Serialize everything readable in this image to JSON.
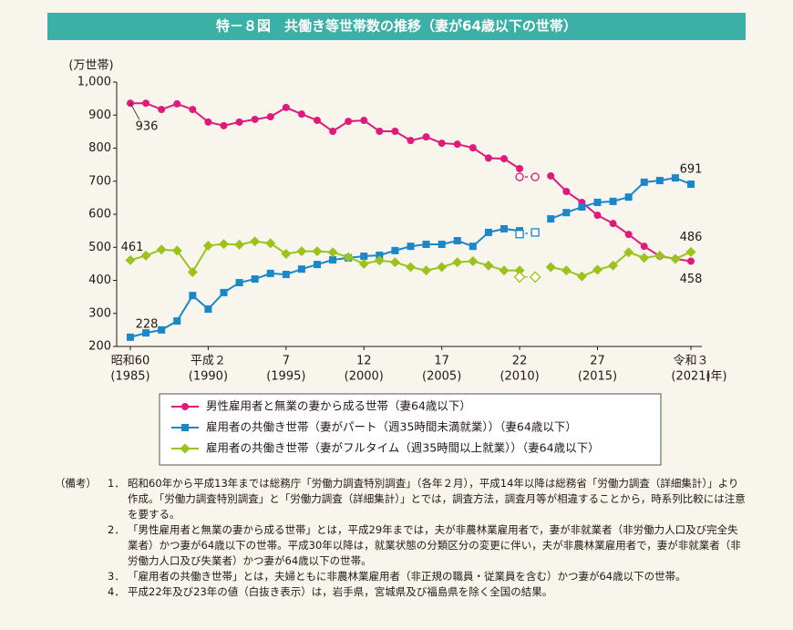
{
  "chart_data": {
    "type": "line",
    "title": "特－８図　共働き等世帯数の推移（妻が64歳以下の世帯）",
    "y_label": "(万世帯)",
    "x_unit": "(年)",
    "x": [
      1985,
      1986,
      1987,
      1988,
      1989,
      1990,
      1991,
      1992,
      1993,
      1994,
      1995,
      1996,
      1997,
      1998,
      1999,
      2000,
      2001,
      2002,
      2003,
      2004,
      2005,
      2006,
      2007,
      2008,
      2009,
      2010,
      2011,
      2012,
      2013,
      2014,
      2015,
      2016,
      2017,
      2018,
      2019,
      2020,
      2021
    ],
    "xlim": [
      1985,
      2021
    ],
    "xticks": [
      {
        "value": 1985,
        "label": "昭和60",
        "sublabel": "(1985)"
      },
      {
        "value": 1990,
        "label": "平成２",
        "sublabel": "(1990)"
      },
      {
        "value": 1995,
        "label": "7",
        "sublabel": "(1995)"
      },
      {
        "value": 2000,
        "label": "12",
        "sublabel": "(2000)"
      },
      {
        "value": 2005,
        "label": "17",
        "sublabel": "(2005)"
      },
      {
        "value": 2010,
        "label": "22",
        "sublabel": "(2010)"
      },
      {
        "value": 2015,
        "label": "27",
        "sublabel": "(2015)"
      },
      {
        "value": 2021,
        "label": "令和３",
        "sublabel": "(2021)"
      }
    ],
    "ylim": [
      200,
      1000
    ],
    "yticks": [
      200,
      300,
      400,
      500,
      600,
      700,
      800,
      900,
      {
        "value": 1000,
        "label": "1,000"
      }
    ],
    "labeled_points": [
      0,
      36
    ],
    "series": [
      {
        "name": "男性雇用者と無業の妻から成る世帯（妻64歳以下）",
        "color": "#e2197c",
        "marker": "circle",
        "values": [
          936,
          936,
          917,
          934,
          917,
          879,
          868,
          879,
          887,
          895,
          923,
          903,
          884,
          851,
          881,
          884,
          851,
          851,
          823,
          834,
          815,
          812,
          801,
          770,
          768,
          738,
          null,
          716,
          669,
          636,
          597,
          572,
          539,
          503,
          473,
          465,
          458
        ],
        "alt_values": [
          null,
          null,
          null,
          null,
          null,
          null,
          null,
          null,
          null,
          null,
          null,
          null,
          null,
          null,
          null,
          null,
          null,
          null,
          null,
          null,
          null,
          null,
          null,
          null,
          null,
          713,
          713,
          null,
          null,
          null,
          null,
          null,
          null,
          null,
          null,
          null,
          null
        ]
      },
      {
        "name": "雇用者の共働き世帯（妻がパート（週35時間未満就業））（妻64歳以下）",
        "color": "#1a87c9",
        "marker": "square",
        "values": [
          228,
          241,
          250,
          277,
          354,
          313,
          363,
          393,
          404,
          421,
          418,
          434,
          448,
          462,
          468,
          473,
          476,
          490,
          503,
          509,
          509,
          520,
          503,
          545,
          556,
          550,
          null,
          586,
          605,
          622,
          636,
          639,
          652,
          697,
          702,
          710,
          691
        ],
        "alt_values": [
          null,
          null,
          null,
          null,
          null,
          null,
          null,
          null,
          null,
          null,
          null,
          null,
          null,
          null,
          null,
          null,
          null,
          null,
          null,
          null,
          null,
          null,
          null,
          null,
          null,
          540,
          545,
          null,
          null,
          null,
          null,
          null,
          null,
          null,
          null,
          null,
          null
        ]
      },
      {
        "name": "雇用者の共働き世帯（妻がフルタイム（週35時間以上就業））（妻64歳以下）",
        "color": "#9cc31b",
        "marker": "diamond",
        "values": [
          461,
          475,
          493,
          490,
          425,
          505,
          510,
          508,
          518,
          512,
          480,
          488,
          488,
          485,
          470,
          450,
          460,
          455,
          440,
          430,
          440,
          455,
          458,
          445,
          430,
          430,
          null,
          440,
          430,
          412,
          432,
          445,
          485,
          468,
          475,
          465,
          486
        ],
        "alt_values": [
          null,
          null,
          null,
          null,
          null,
          null,
          null,
          null,
          null,
          null,
          null,
          null,
          null,
          null,
          null,
          null,
          null,
          null,
          null,
          null,
          null,
          null,
          null,
          null,
          null,
          410,
          410,
          null,
          null,
          null,
          null,
          null,
          null,
          null,
          null,
          null,
          null
        ]
      }
    ]
  },
  "notes": {
    "heading": "（備考）",
    "items": [
      {
        "num": "1．",
        "text": "昭和60年から平成13年までは総務庁「労働力調査特別調査」（各年２月），平成14年以降は総務省「労働力調査（詳細集計）」より作成。「労働力調査特別調査」と「労働力調査（詳細集計）」とでは，調査方法，調査月等が相違することから，時系列比較には注意を要する。"
      },
      {
        "num": "2．",
        "text": "「男性雇用者と無業の妻から成る世帯」とは，平成29年までは，夫が非農林業雇用者で，妻が非就業者（非労働力人口及び完全失業者）かつ妻が64歳以下の世帯。平成30年以降は，就業状態の分類区分の変更に伴い，夫が非農林業雇用者で，妻が非就業者（非労働力人口及び失業者）かつ妻が64歳以下の世帯。"
      },
      {
        "num": "3．",
        "text": "「雇用者の共働き世帯」とは，夫婦ともに非農林業雇用者（非正規の職員・従業員を含む）かつ妻が64歳以下の世帯。"
      },
      {
        "num": "4．",
        "text": "平成22年及び23年の値（白抜き表示）は，岩手県，宮城県及び福島県を除く全国の結果。"
      }
    ]
  }
}
